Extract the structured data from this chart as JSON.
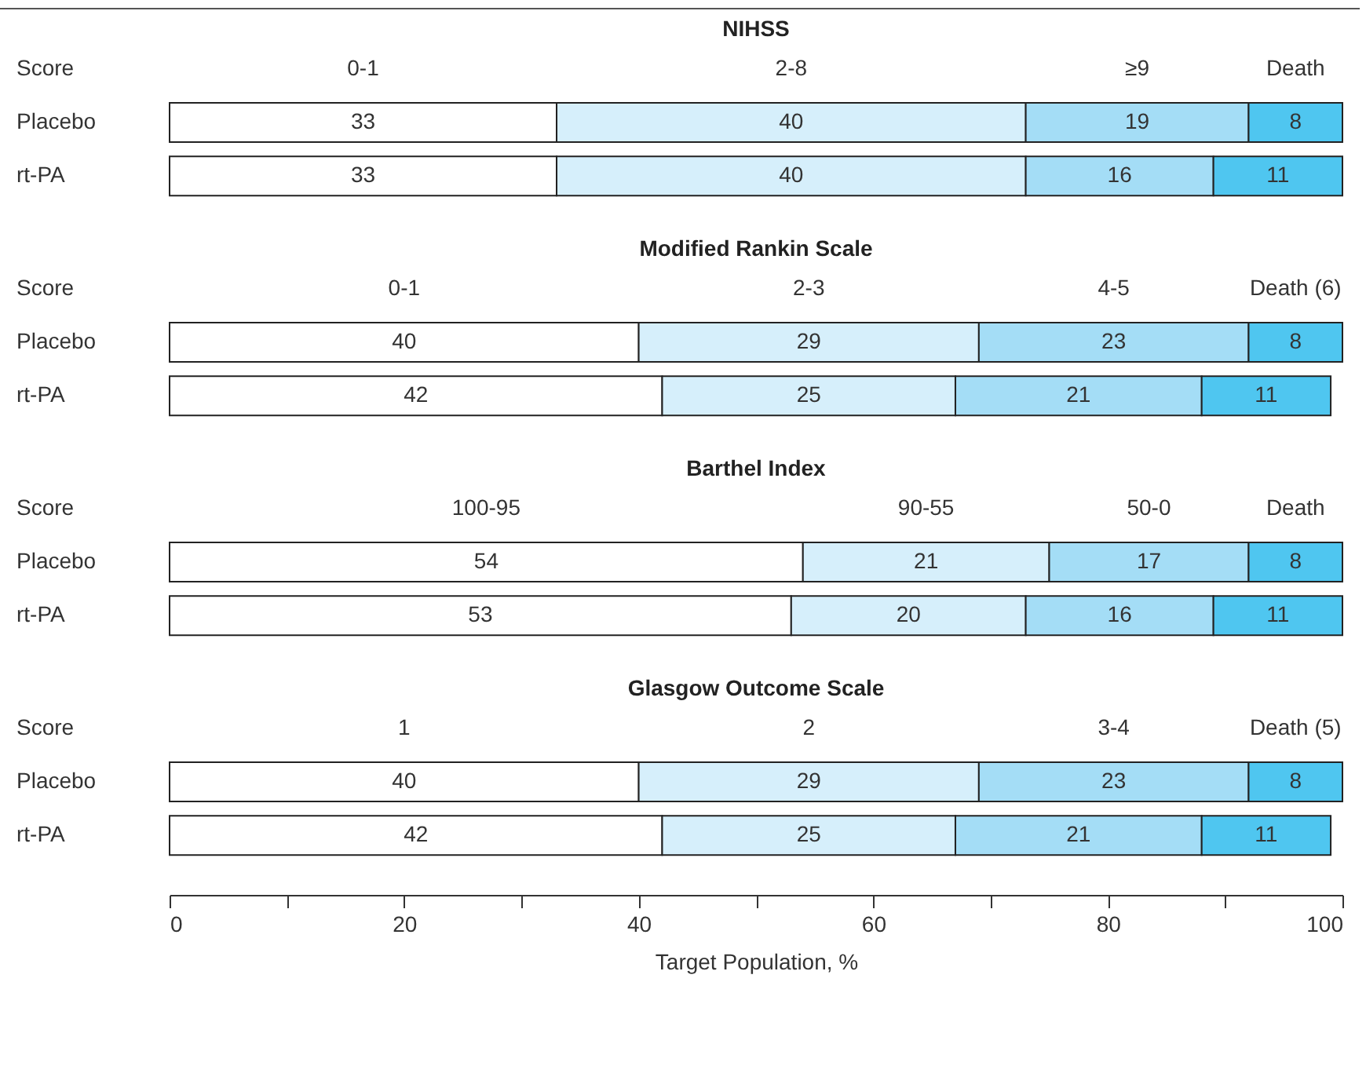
{
  "chart_data": [
    {
      "type": "bar",
      "title": "NIHSS",
      "legend_title": "Score",
      "orientation": "horizontal",
      "stacked": true,
      "data_labels": true,
      "legend": false,
      "tick_labels": "y",
      "xlim": [
        0,
        100
      ],
      "categories": [
        "Placebo",
        "rt-PA"
      ],
      "series": [
        {
          "name": "0-1",
          "color": "#ffffff",
          "values": [
            33,
            33
          ]
        },
        {
          "name": "2-8",
          "color": "#d6effb",
          "values": [
            40,
            40
          ]
        },
        {
          "name": "≥9",
          "color": "#a4ddf6",
          "values": [
            19,
            16
          ]
        },
        {
          "name": "Death",
          "color": "#4fc6f0",
          "values": [
            8,
            11
          ]
        }
      ]
    },
    {
      "type": "bar",
      "title": "Modified Rankin Scale",
      "legend_title": "Score",
      "orientation": "horizontal",
      "stacked": true,
      "data_labels": true,
      "legend": false,
      "tick_labels": "y",
      "xlim": [
        0,
        100
      ],
      "categories": [
        "Placebo",
        "rt-PA"
      ],
      "series": [
        {
          "name": "0-1",
          "color": "#ffffff",
          "values": [
            40,
            42
          ]
        },
        {
          "name": "2-3",
          "color": "#d6effb",
          "values": [
            29,
            25
          ]
        },
        {
          "name": "4-5",
          "color": "#a4ddf6",
          "values": [
            23,
            21
          ]
        },
        {
          "name": "Death (6)",
          "color": "#4fc6f0",
          "values": [
            8,
            11
          ]
        }
      ]
    },
    {
      "type": "bar",
      "title": "Barthel Index",
      "legend_title": "Score",
      "orientation": "horizontal",
      "stacked": true,
      "data_labels": true,
      "legend": false,
      "tick_labels": "y",
      "xlim": [
        0,
        100
      ],
      "categories": [
        "Placebo",
        "rt-PA"
      ],
      "series": [
        {
          "name": "100-95",
          "color": "#ffffff",
          "values": [
            54,
            53
          ]
        },
        {
          "name": "90-55",
          "color": "#d6effb",
          "values": [
            21,
            20
          ]
        },
        {
          "name": "50-0",
          "color": "#a4ddf6",
          "values": [
            17,
            16
          ]
        },
        {
          "name": "Death",
          "color": "#4fc6f0",
          "values": [
            8,
            11
          ]
        }
      ]
    },
    {
      "type": "bar",
      "title": "Glasgow Outcome Scale",
      "legend_title": "Score",
      "orientation": "horizontal",
      "stacked": true,
      "data_labels": true,
      "legend": false,
      "xlabel": "Target Population, %",
      "xlim": [
        0,
        100
      ],
      "xticks": [
        0,
        {
          "value": 10,
          "label": null
        },
        20,
        {
          "value": 30,
          "label": null
        },
        40,
        {
          "value": 50,
          "label": null
        },
        60,
        {
          "value": 70,
          "label": null
        },
        80,
        {
          "value": 90,
          "label": null
        },
        100
      ],
      "categories": [
        "Placebo",
        "rt-PA"
      ],
      "series": [
        {
          "name": "1",
          "color": "#ffffff",
          "values": [
            40,
            42
          ]
        },
        {
          "name": "2",
          "color": "#d6effb",
          "values": [
            29,
            25
          ]
        },
        {
          "name": "3-4",
          "color": "#a4ddf6",
          "values": [
            23,
            21
          ]
        },
        {
          "name": "Death (5)",
          "color": "#4fc6f0",
          "values": [
            8,
            11
          ]
        }
      ]
    }
  ]
}
